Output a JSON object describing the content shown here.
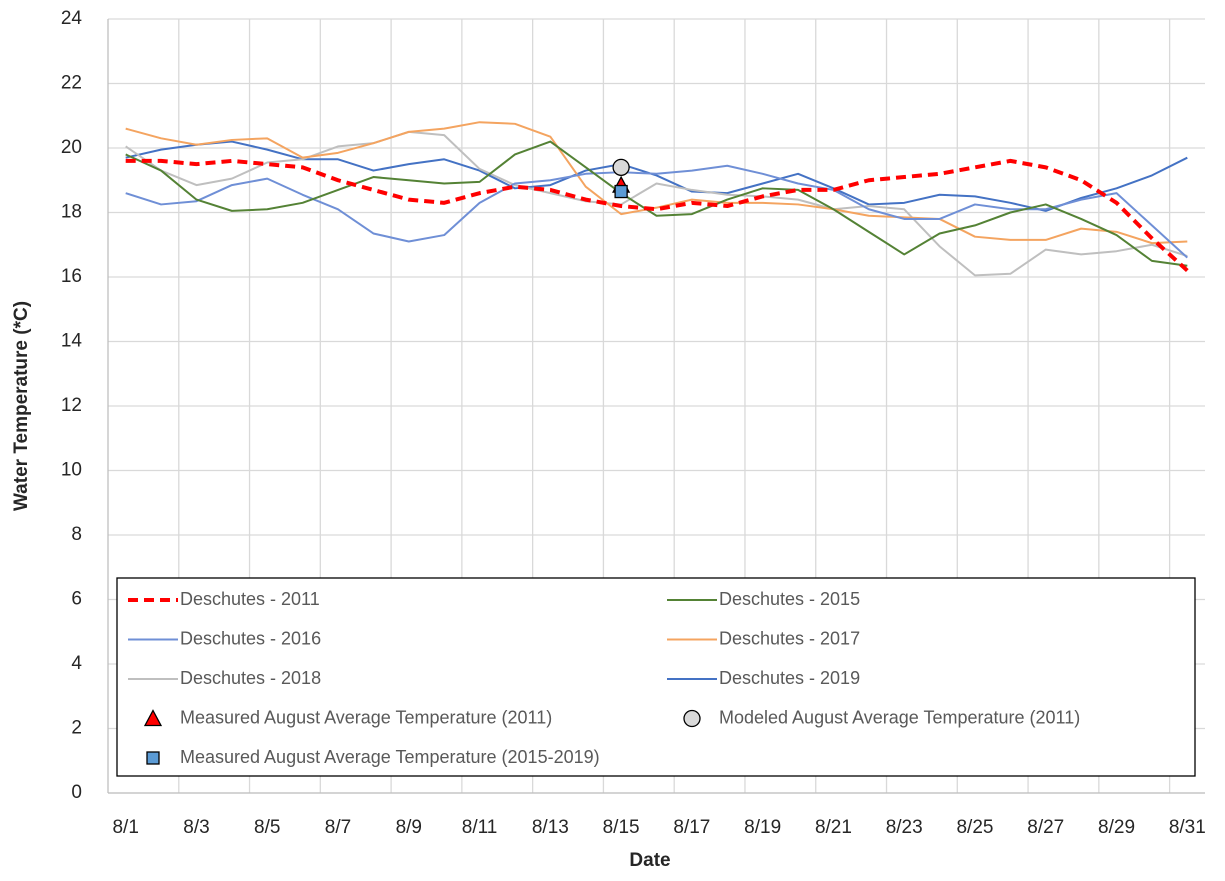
{
  "chart_data": {
    "type": "line",
    "x_label": "Date",
    "y_label": "Water Temperature (*C)",
    "categories": [
      "8/1",
      null,
      "8/3",
      null,
      "8/5",
      null,
      "8/7",
      null,
      "8/9",
      null,
      "8/11",
      null,
      "8/13",
      null,
      "8/15",
      null,
      "8/17",
      null,
      "8/19",
      null,
      "8/21",
      null,
      "8/23",
      null,
      "8/25",
      null,
      "8/27",
      null,
      "8/29",
      null,
      "8/31"
    ],
    "ylim": [
      0,
      24
    ],
    "yticks": [
      0,
      2,
      4,
      6,
      8,
      10,
      12,
      14,
      16,
      18,
      20,
      22,
      24
    ],
    "grid": true,
    "series": [
      {
        "name": "Deschutes - 2011",
        "color": "#ff0000",
        "dash": true,
        "values": [
          19.6,
          19.6,
          19.5,
          19.6,
          19.5,
          19.4,
          19.0,
          18.7,
          18.4,
          18.3,
          18.6,
          18.8,
          18.7,
          18.4,
          18.2,
          18.1,
          18.3,
          18.2,
          18.5,
          18.7,
          18.7,
          19.0,
          19.1,
          19.2,
          19.4,
          19.6,
          19.4,
          19.0,
          18.3,
          17.2,
          16.2
        ]
      },
      {
        "name": "Deschutes - 2015",
        "color": "#548235",
        "values": [
          19.8,
          19.3,
          18.4,
          18.05,
          18.1,
          18.3,
          18.7,
          19.1,
          19.0,
          18.9,
          18.95,
          19.8,
          20.2,
          19.4,
          18.6,
          17.9,
          17.95,
          18.4,
          18.75,
          18.7,
          18.1,
          17.4,
          16.7,
          17.35,
          17.6,
          18.0,
          18.25,
          17.8,
          17.3,
          16.5,
          16.35
        ]
      },
      {
        "name": "Deschutes - 2016",
        "color": "#6f8fd6",
        "values": [
          18.6,
          18.25,
          18.35,
          18.85,
          19.05,
          18.55,
          18.1,
          17.35,
          17.1,
          17.3,
          18.3,
          18.9,
          19.0,
          19.2,
          19.25,
          19.2,
          19.3,
          19.45,
          19.2,
          18.9,
          18.7,
          18.1,
          17.8,
          17.8,
          18.25,
          18.1,
          18.1,
          18.4,
          18.6,
          17.6,
          16.6
        ]
      },
      {
        "name": "Deschutes - 2017",
        "color": "#f4a460",
        "values": [
          20.6,
          20.3,
          20.1,
          20.25,
          20.3,
          19.7,
          19.85,
          20.15,
          20.5,
          20.6,
          20.8,
          20.75,
          20.35,
          18.8,
          17.95,
          18.15,
          18.4,
          18.3,
          18.3,
          18.25,
          18.1,
          17.9,
          17.85,
          17.8,
          17.25,
          17.15,
          17.15,
          17.5,
          17.4,
          17.05,
          17.1
        ]
      },
      {
        "name": "Deschutes - 2018",
        "color": "#bfbfbf",
        "values": [
          20.05,
          19.3,
          18.85,
          19.05,
          19.55,
          19.65,
          20.05,
          20.15,
          20.5,
          20.4,
          19.35,
          18.85,
          18.6,
          18.35,
          18.25,
          18.9,
          18.7,
          18.55,
          18.5,
          18.4,
          18.1,
          18.2,
          18.1,
          16.95,
          16.05,
          16.1,
          16.85,
          16.7,
          16.8,
          17.0,
          16.65
        ]
      },
      {
        "name": "Deschutes - 2019",
        "color": "#4472c4",
        "values": [
          19.7,
          19.95,
          20.1,
          20.2,
          19.95,
          19.65,
          19.65,
          19.3,
          19.5,
          19.65,
          19.3,
          18.75,
          18.85,
          19.3,
          19.5,
          19.15,
          18.65,
          18.6,
          18.9,
          19.2,
          18.75,
          18.25,
          18.3,
          18.55,
          18.5,
          18.3,
          18.05,
          18.45,
          18.75,
          19.15,
          19.7
        ]
      },
      {
        "name": "Measured August Average Temperature (2011)",
        "color": "#ff0000",
        "marker": "triangle",
        "values": [
          null,
          null,
          null,
          null,
          null,
          null,
          null,
          null,
          null,
          null,
          null,
          null,
          null,
          null,
          18.85,
          null,
          null,
          null,
          null,
          null,
          null,
          null,
          null,
          null,
          null,
          null,
          null,
          null,
          null,
          null,
          null
        ]
      },
      {
        "name": "Modeled August Average Temperature (2011)",
        "color": "#d9d9d9",
        "marker": "circle",
        "values": [
          null,
          null,
          null,
          null,
          null,
          null,
          null,
          null,
          null,
          null,
          null,
          null,
          null,
          null,
          19.4,
          null,
          null,
          null,
          null,
          null,
          null,
          null,
          null,
          null,
          null,
          null,
          null,
          null,
          null,
          null,
          null
        ]
      },
      {
        "name": "Measured August Average Temperature (2015-2019)",
        "color": "#5b9bd5",
        "marker": "square",
        "values": [
          null,
          null,
          null,
          null,
          null,
          null,
          null,
          null,
          null,
          null,
          null,
          null,
          null,
          null,
          18.65,
          null,
          null,
          null,
          null,
          null,
          null,
          null,
          null,
          null,
          null,
          null,
          null,
          null,
          null,
          null,
          null
        ]
      }
    ]
  }
}
